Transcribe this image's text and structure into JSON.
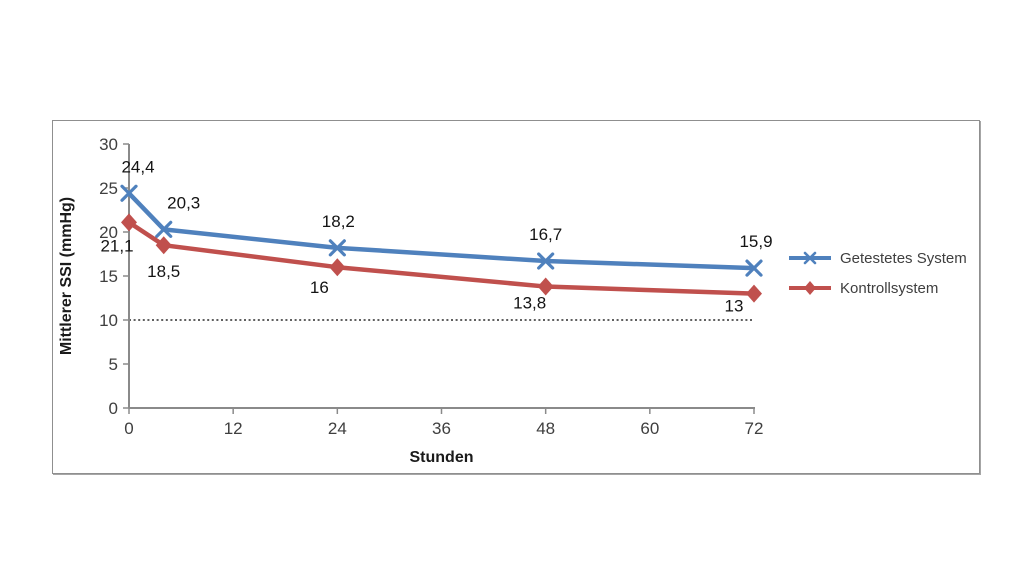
{
  "chart_data": {
    "type": "line",
    "xlabel": "Stunden",
    "ylabel": "Mittlerer SSI (mmHg)",
    "x": [
      0,
      4,
      24,
      48,
      72
    ],
    "x_ticks": [
      0,
      12,
      24,
      36,
      48,
      60,
      72
    ],
    "xlim": [
      0,
      72
    ],
    "y_ticks": [
      0,
      5,
      10,
      15,
      20,
      25,
      30
    ],
    "ylim": [
      0,
      30
    ],
    "grid": false,
    "legend_position": "right",
    "reference_line": {
      "y": 10,
      "style": "dotted",
      "color": "#000000"
    },
    "axis_color": "#8a8a8a",
    "tick_text_color": "#3f3f3f",
    "label_text_color": "#141414",
    "series": [
      {
        "name": "Getestetes System",
        "color": "#4F81BD",
        "marker": "x",
        "values": [
          24.4,
          20.3,
          18.2,
          16.7,
          15.9
        ],
        "point_labels": [
          "24,4",
          "20,3",
          "18,2",
          "16,7",
          "15,9"
        ],
        "label_side": "above"
      },
      {
        "name": "Kontrollsystem",
        "color": "#C0504D",
        "marker": "diamond",
        "values": [
          21.1,
          18.5,
          16,
          13.8,
          13
        ],
        "point_labels": [
          "21,1",
          "18,5",
          "16",
          "13,8",
          "13"
        ],
        "label_side": "below"
      }
    ]
  }
}
